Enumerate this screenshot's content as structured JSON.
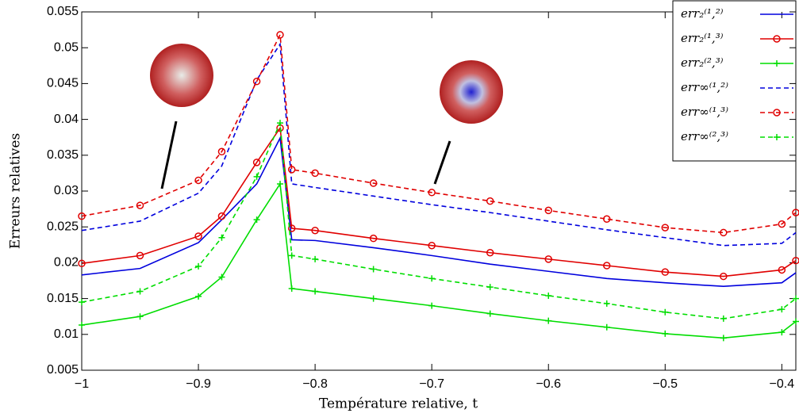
{
  "chart_data": {
    "type": "line",
    "xlabel": "Température relative, t",
    "ylabel": "Erreurs relatives",
    "x": [
      -1,
      -0.95,
      -0.9,
      -0.88,
      -0.85,
      -0.83,
      -0.82,
      -0.8,
      -0.75,
      -0.7,
      -0.65,
      -0.6,
      -0.55,
      -0.5,
      -0.45,
      -0.4,
      -0.388
    ],
    "series": [
      {
        "name": "err₂⁽¹,²⁾",
        "color": "#0000dd",
        "dashed": false,
        "marker": "none",
        "values": [
          0.0183,
          0.0192,
          0.0228,
          0.026,
          0.031,
          0.0374,
          0.0232,
          0.0231,
          0.0221,
          0.021,
          0.0198,
          0.0188,
          0.0178,
          0.0172,
          0.0167,
          0.0172,
          0.0186
        ]
      },
      {
        "name": "err₂⁽¹,³⁾",
        "color": "#e00000",
        "dashed": false,
        "marker": "circle",
        "values": [
          0.0199,
          0.021,
          0.0237,
          0.0265,
          0.034,
          0.0388,
          0.0248,
          0.0245,
          0.0234,
          0.0224,
          0.0214,
          0.0205,
          0.0196,
          0.0187,
          0.0181,
          0.019,
          0.0203
        ]
      },
      {
        "name": "err₂⁽²,³⁾",
        "color": "#00dd00",
        "dashed": false,
        "marker": "plus",
        "values": [
          0.0113,
          0.0125,
          0.0153,
          0.018,
          0.026,
          0.031,
          0.0164,
          0.016,
          0.015,
          0.014,
          0.0129,
          0.0119,
          0.011,
          0.0101,
          0.0095,
          0.0103,
          0.0118
        ]
      },
      {
        "name": "err∞⁽¹,²⁾",
        "color": "#0000dd",
        "dashed": true,
        "marker": "none",
        "values": [
          0.0245,
          0.0258,
          0.0297,
          0.0335,
          0.0455,
          0.0505,
          0.031,
          0.0305,
          0.0293,
          0.0281,
          0.027,
          0.0258,
          0.0246,
          0.0235,
          0.0224,
          0.0227,
          0.0242
        ]
      },
      {
        "name": "err∞⁽¹,³⁾",
        "color": "#e00000",
        "dashed": true,
        "marker": "circle",
        "values": [
          0.0265,
          0.028,
          0.0315,
          0.0355,
          0.0453,
          0.0518,
          0.033,
          0.0325,
          0.0311,
          0.0298,
          0.0286,
          0.0273,
          0.0261,
          0.0249,
          0.0242,
          0.0254,
          0.027
        ]
      },
      {
        "name": "err∞⁽²,³⁾",
        "color": "#00dd00",
        "dashed": true,
        "marker": "plus",
        "values": [
          0.0145,
          0.016,
          0.0195,
          0.0235,
          0.032,
          0.0395,
          0.021,
          0.0205,
          0.0191,
          0.0178,
          0.0166,
          0.0154,
          0.0143,
          0.0131,
          0.0122,
          0.0135,
          0.015
        ]
      }
    ],
    "xlim": [
      -1,
      -0.388
    ],
    "ylim": [
      0.005,
      0.055
    ],
    "xticks": [
      {
        "value": -1,
        "label": "−1"
      },
      {
        "value": -0.9,
        "label": "−0.9"
      },
      {
        "value": -0.8,
        "label": "−0.8"
      },
      {
        "value": -0.7,
        "label": "−0.7"
      },
      {
        "value": -0.6,
        "label": "−0.6"
      },
      {
        "value": -0.5,
        "label": "−0.5"
      },
      {
        "value": -0.4,
        "label": "−0.4"
      }
    ],
    "yticks": [
      0.005,
      0.01,
      0.015,
      0.02,
      0.025,
      0.03,
      0.035,
      0.04,
      0.045,
      0.05,
      0.055
    ],
    "grid": false,
    "legend": "upper right"
  }
}
